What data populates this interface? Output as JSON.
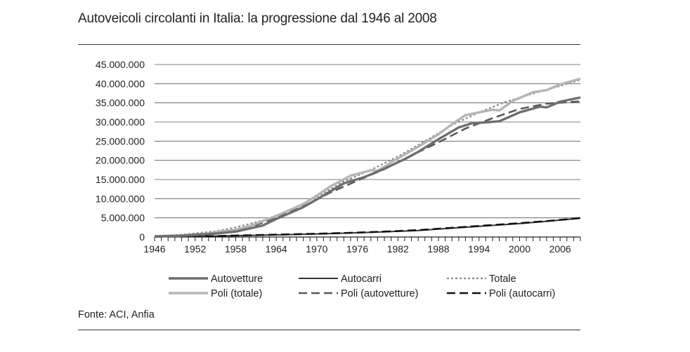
{
  "title": "Autoveicoli circolanti in Italia: la progressione dal 1946 al 2008",
  "source": "Fonte: ACI, Anfia",
  "chart_data": {
    "type": "line",
    "title": "Autoveicoli circolanti in Italia: la progressione dal 1946 al 2008",
    "xlabel": "",
    "ylabel": "",
    "xlim": [
      1946,
      2009
    ],
    "ylim": [
      0,
      45000000
    ],
    "x_ticks": [
      "1946",
      "1952",
      "1958",
      "1964",
      "1970",
      "1976",
      "1982",
      "1988",
      "1994",
      "2000",
      "2006"
    ],
    "y_ticks": [
      "0",
      "5.000.000",
      "10.000.000",
      "15.000.000",
      "20.000.000",
      "25.000.000",
      "30.000.000",
      "35.000.000",
      "40.000.000",
      "45.000.000"
    ],
    "grid": "horizontal",
    "legend_position": "bottom",
    "series": [
      {
        "name": "Autovetture",
        "color": "#6e6e6e",
        "style": "solid",
        "x": [
          1946,
          1950,
          1955,
          1958,
          1962,
          1964,
          1968,
          1970,
          1974,
          1977,
          1980,
          1983,
          1985,
          1988,
          1991,
          1993,
          1995,
          1997,
          2000,
          2003,
          2004,
          2006,
          2009
        ],
        "y": [
          150000,
          350000,
          900000,
          1400000,
          3000000,
          4700000,
          7800000,
          9800000,
          14000000,
          15600000,
          17800000,
          20300000,
          22200000,
          25500000,
          28600000,
          29700000,
          29900000,
          30200000,
          32500000,
          34000000,
          33800000,
          35300000,
          36400000
        ]
      },
      {
        "name": "Autocarri",
        "color": "#333333",
        "style": "solid",
        "x": [
          1946,
          1955,
          1960,
          1965,
          1970,
          1975,
          1980,
          1985,
          1990,
          1995,
          2000,
          2005,
          2009
        ],
        "y": [
          100000,
          250000,
          400000,
          600000,
          800000,
          1050000,
          1350000,
          1700000,
          2300000,
          2900000,
          3500000,
          4250000,
          4900000
        ]
      },
      {
        "name": "Totale",
        "color": "#8a8a8a",
        "style": "dotted",
        "x": [
          1946,
          1950,
          1955,
          1958,
          1962,
          1966,
          1970,
          1974,
          1978,
          1982,
          1986,
          1990,
          1994,
          1998,
          2002,
          2006,
          2009
        ],
        "y": [
          300000,
          600000,
          1500000,
          2500000,
          4300000,
          7000000,
          10500000,
          14500000,
          17500000,
          21000000,
          25000000,
          29200000,
          32500000,
          35300000,
          37400000,
          39400000,
          41000000
        ]
      },
      {
        "name": "Poli (totale)",
        "color": "#b5b5b5",
        "style": "solid",
        "x": [
          1946,
          1950,
          1954,
          1956,
          1958,
          1960,
          1964,
          1968,
          1970,
          1972,
          1975,
          1978,
          1979,
          1982,
          1984,
          1986,
          1988,
          1990,
          1992,
          1994,
          1996,
          1997,
          1999,
          2002,
          2004,
          2006,
          2009
        ],
        "y": [
          200000,
          400000,
          900000,
          1500000,
          1900000,
          2800000,
          5500000,
          8600000,
          10800000,
          13200000,
          16000000,
          17400000,
          17300000,
          20500000,
          22500000,
          24600000,
          26800000,
          29400000,
          31800000,
          32500000,
          33200000,
          33000000,
          35500000,
          37800000,
          38300000,
          39800000,
          41300000
        ]
      },
      {
        "name": "Poli (autovetture)",
        "color": "#5a5a5a",
        "style": "dashed",
        "x": [
          1946,
          1952,
          1956,
          1960,
          1964,
          1968,
          1972,
          1976,
          1980,
          1984,
          1988,
          1992,
          1996,
          2000,
          2004,
          2009
        ],
        "y": [
          0,
          400000,
          1100000,
          2500000,
          5000000,
          8000000,
          11600000,
          14700000,
          17700000,
          21300000,
          24700000,
          28300000,
          31000000,
          33400000,
          34800000,
          35400000
        ]
      },
      {
        "name": "Poli (autocarri)",
        "color": "#111111",
        "style": "dashed",
        "x": [
          1946,
          1955,
          1960,
          1965,
          1970,
          1975,
          1980,
          1985,
          1990,
          1995,
          2000,
          2005,
          2009
        ],
        "y": [
          80000,
          250000,
          450000,
          650000,
          850000,
          1100000,
          1400000,
          1800000,
          2400000,
          3000000,
          3600000,
          4300000,
          4950000
        ]
      }
    ]
  }
}
